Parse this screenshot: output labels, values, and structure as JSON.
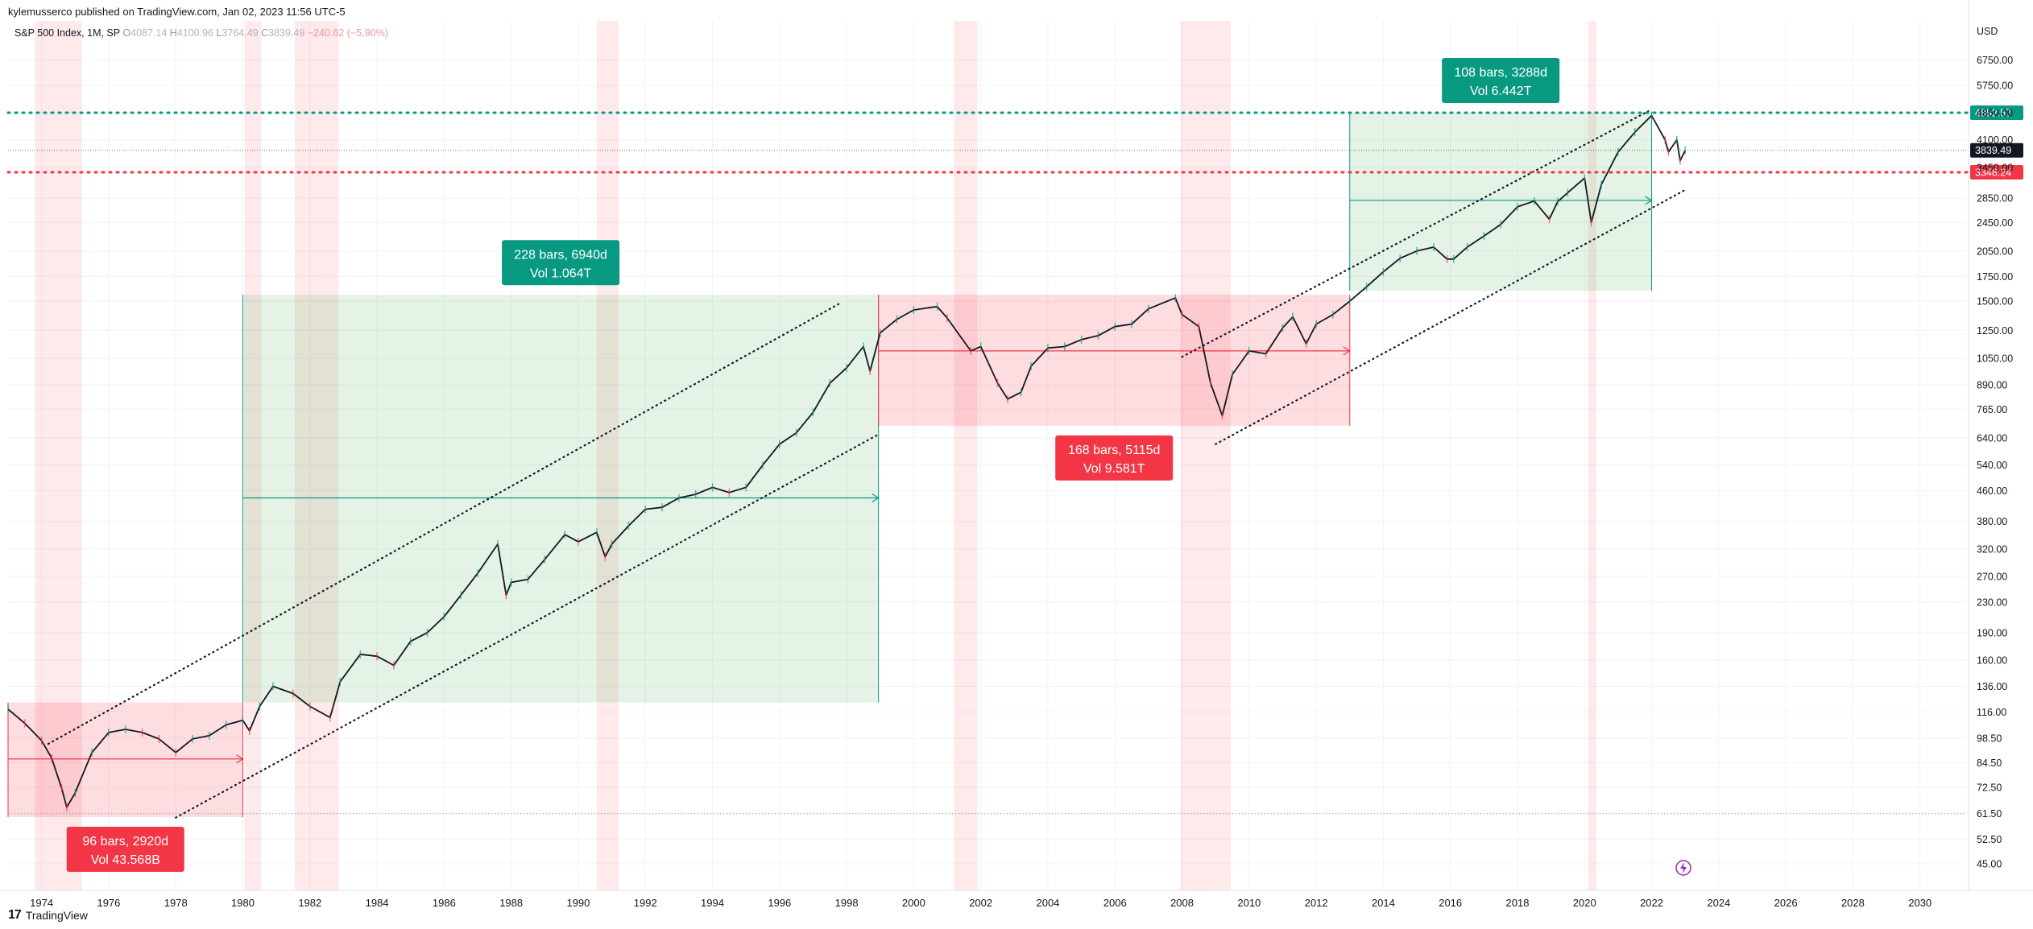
{
  "publisher": "kylemusserco published on TradingView.com, Jan 02, 2023 11:56 UTC-5",
  "legend": {
    "symbol": "S&P 500 Index, 1M, SP",
    "o_label": "O",
    "o": "4087.14",
    "h_label": "H",
    "h": "4100.96",
    "l_label": "L",
    "l": "3764.49",
    "c_label": "C",
    "c": "3839.49",
    "change": "−240.62 (−5.90%)"
  },
  "footer": {
    "logo": "17",
    "brand": "TradingView"
  },
  "chart_data": {
    "type": "line",
    "title": "S&P 500 Index, 1M, SP",
    "y_axis_unit": "USD",
    "y_scale": "log",
    "ylim": [
      40.5,
      8600
    ],
    "xlim": [
      1973.0,
      2031.4
    ],
    "y_ticks": [
      "6750.00",
      "5750.00",
      "4850.00",
      "4100.00",
      "3450.00",
      "2850.00",
      "2450.00",
      "2050.00",
      "1750.00",
      "1500.00",
      "1250.00",
      "1050.00",
      "890.00",
      "765.00",
      "640.00",
      "540.00",
      "460.00",
      "380.00",
      "320.00",
      "270.00",
      "230.00",
      "190.00",
      "160.00",
      "136.00",
      "116.00",
      "98.50",
      "84.50",
      "72.50",
      "61.50",
      "52.50",
      "45.00"
    ],
    "x_ticks": [
      "1974",
      "1976",
      "1978",
      "1980",
      "1982",
      "1984",
      "1986",
      "1988",
      "1990",
      "1992",
      "1994",
      "1996",
      "1998",
      "2000",
      "2002",
      "2004",
      "2006",
      "2008",
      "2010",
      "2012",
      "2014",
      "2016",
      "2018",
      "2020",
      "2022",
      "2024",
      "2026",
      "2028",
      "2030"
    ],
    "series": [
      {
        "x": [
          1973.0,
          1973.5,
          1974.0,
          1974.3,
          1974.6,
          1974.75,
          1975.0,
          1975.5,
          1976.0,
          1976.5,
          1977.0,
          1977.5,
          1978.0,
          1978.5,
          1979.0,
          1979.5,
          1980.0,
          1980.2,
          1980.5,
          1980.9,
          1981.5,
          1982.0,
          1982.6,
          1982.9,
          1983.5,
          1984.0,
          1984.5,
          1985.0,
          1985.5,
          1986.0,
          1986.5,
          1987.0,
          1987.6,
          1987.85,
          1988.0,
          1988.5,
          1989.0,
          1989.6,
          1990.0,
          1990.55,
          1990.8,
          1991.0,
          1991.5,
          1992.0,
          1992.5,
          1993.0,
          1993.5,
          1994.0,
          1994.5,
          1995.0,
          1995.5,
          1996.0,
          1996.5,
          1997.0,
          1997.5,
          1998.0,
          1998.5,
          1998.7,
          1999.0,
          1999.5,
          2000.0,
          2000.7,
          2001.0,
          2001.7,
          2002.0,
          2002.5,
          2002.8,
          2003.2,
          2003.5,
          2004.0,
          2004.5,
          2005.0,
          2005.5,
          2006.0,
          2006.5,
          2007.0,
          2007.8,
          2008.0,
          2008.5,
          2008.85,
          2009.2,
          2009.5,
          2010.0,
          2010.5,
          2011.0,
          2011.3,
          2011.7,
          2012.0,
          2012.5,
          2013.0,
          2013.5,
          2014.0,
          2014.5,
          2015.0,
          2015.5,
          2015.9,
          2016.1,
          2016.5,
          2017.0,
          2017.5,
          2018.0,
          2018.5,
          2018.95,
          2019.2,
          2019.5,
          2020.0,
          2020.2,
          2020.5,
          2021.0,
          2021.5,
          2022.0,
          2022.4,
          2022.5,
          2022.75,
          2022.85,
          2023.0
        ],
        "y": [
          118,
          108,
          97,
          87,
          72,
          64,
          70,
          90,
          102,
          104,
          102,
          98,
          90,
          98,
          100,
          107,
          110,
          103,
          120,
          136,
          130,
          120,
          112,
          140,
          166,
          164,
          155,
          180,
          190,
          210,
          240,
          275,
          330,
          240,
          260,
          265,
          300,
          350,
          335,
          355,
          305,
          330,
          370,
          410,
          415,
          440,
          450,
          470,
          455,
          470,
          540,
          615,
          660,
          750,
          900,
          990,
          1130,
          970,
          1230,
          1340,
          1420,
          1450,
          1350,
          1100,
          1130,
          900,
          815,
          850,
          1000,
          1120,
          1130,
          1180,
          1210,
          1280,
          1300,
          1430,
          1530,
          1380,
          1280,
          900,
          735,
          950,
          1100,
          1080,
          1270,
          1360,
          1150,
          1300,
          1380,
          1500,
          1640,
          1800,
          1960,
          2050,
          2100,
          1950,
          1950,
          2100,
          2250,
          2420,
          2700,
          2800,
          2500,
          2790,
          2950,
          3230,
          2450,
          3100,
          3800,
          4300,
          4770,
          4100,
          3800,
          4100,
          3600,
          3839
        ]
      }
    ],
    "current_price": "3839.49",
    "price_levels": [
      {
        "value": 4852.57,
        "label": "4852.57",
        "color": "#089981",
        "style": "dotted"
      },
      {
        "value": 3348.24,
        "label": "3348.24",
        "color": "#f23645",
        "style": "dotted"
      },
      {
        "value": 61.5,
        "style": "gray-dotted"
      }
    ],
    "recession_bands": [
      [
        1973.8,
        1975.2
      ],
      [
        1980.05,
        1980.55
      ],
      [
        1981.55,
        1982.85
      ],
      [
        1990.55,
        1991.2
      ],
      [
        2001.2,
        2001.9
      ],
      [
        2007.95,
        2009.45
      ],
      [
        2020.1,
        2020.35
      ]
    ],
    "measurements": [
      {
        "color": "red",
        "x0": 1973.0,
        "x1": 1980.0,
        "y_top": 123,
        "y_bottom": 60.2,
        "line_y": 86.5,
        "label1": "96 bars, 2920d",
        "label2": "Vol 43.568B",
        "label_pos": "below"
      },
      {
        "color": "green",
        "x0": 1980.0,
        "x1": 1998.95,
        "y_top": 1560,
        "y_bottom": 123,
        "line_y": 440,
        "label1": "228 bars, 6940d",
        "label2": "Vol 1.064T",
        "label_pos": "above"
      },
      {
        "color": "red",
        "x0": 1998.95,
        "x1": 2013.0,
        "y_top": 1560,
        "y_bottom": 690,
        "line_y": 1100,
        "label1": "168 bars, 5115d",
        "label2": "Vol 9.581T",
        "label_pos": "below"
      },
      {
        "color": "green",
        "x0": 2013.0,
        "x1": 2022.0,
        "y_top": 4852.57,
        "y_bottom": 1600,
        "line_y": 2810,
        "label1": "108 bars, 3288d",
        "label2": "Vol 6.442T",
        "label_pos": "above"
      }
    ],
    "trend_lines": [
      {
        "x0": 1974.2,
        "y0": 95,
        "x1": 1997.8,
        "y1": 1480
      },
      {
        "x0": 1978.0,
        "y0": 60,
        "x1": 1998.9,
        "y1": 650
      },
      {
        "x0": 2008.0,
        "y0": 1060,
        "x1": 2021.9,
        "y1": 4900
      },
      {
        "x0": 2009.0,
        "y0": 615,
        "x1": 2023.0,
        "y1": 3000
      }
    ]
  }
}
